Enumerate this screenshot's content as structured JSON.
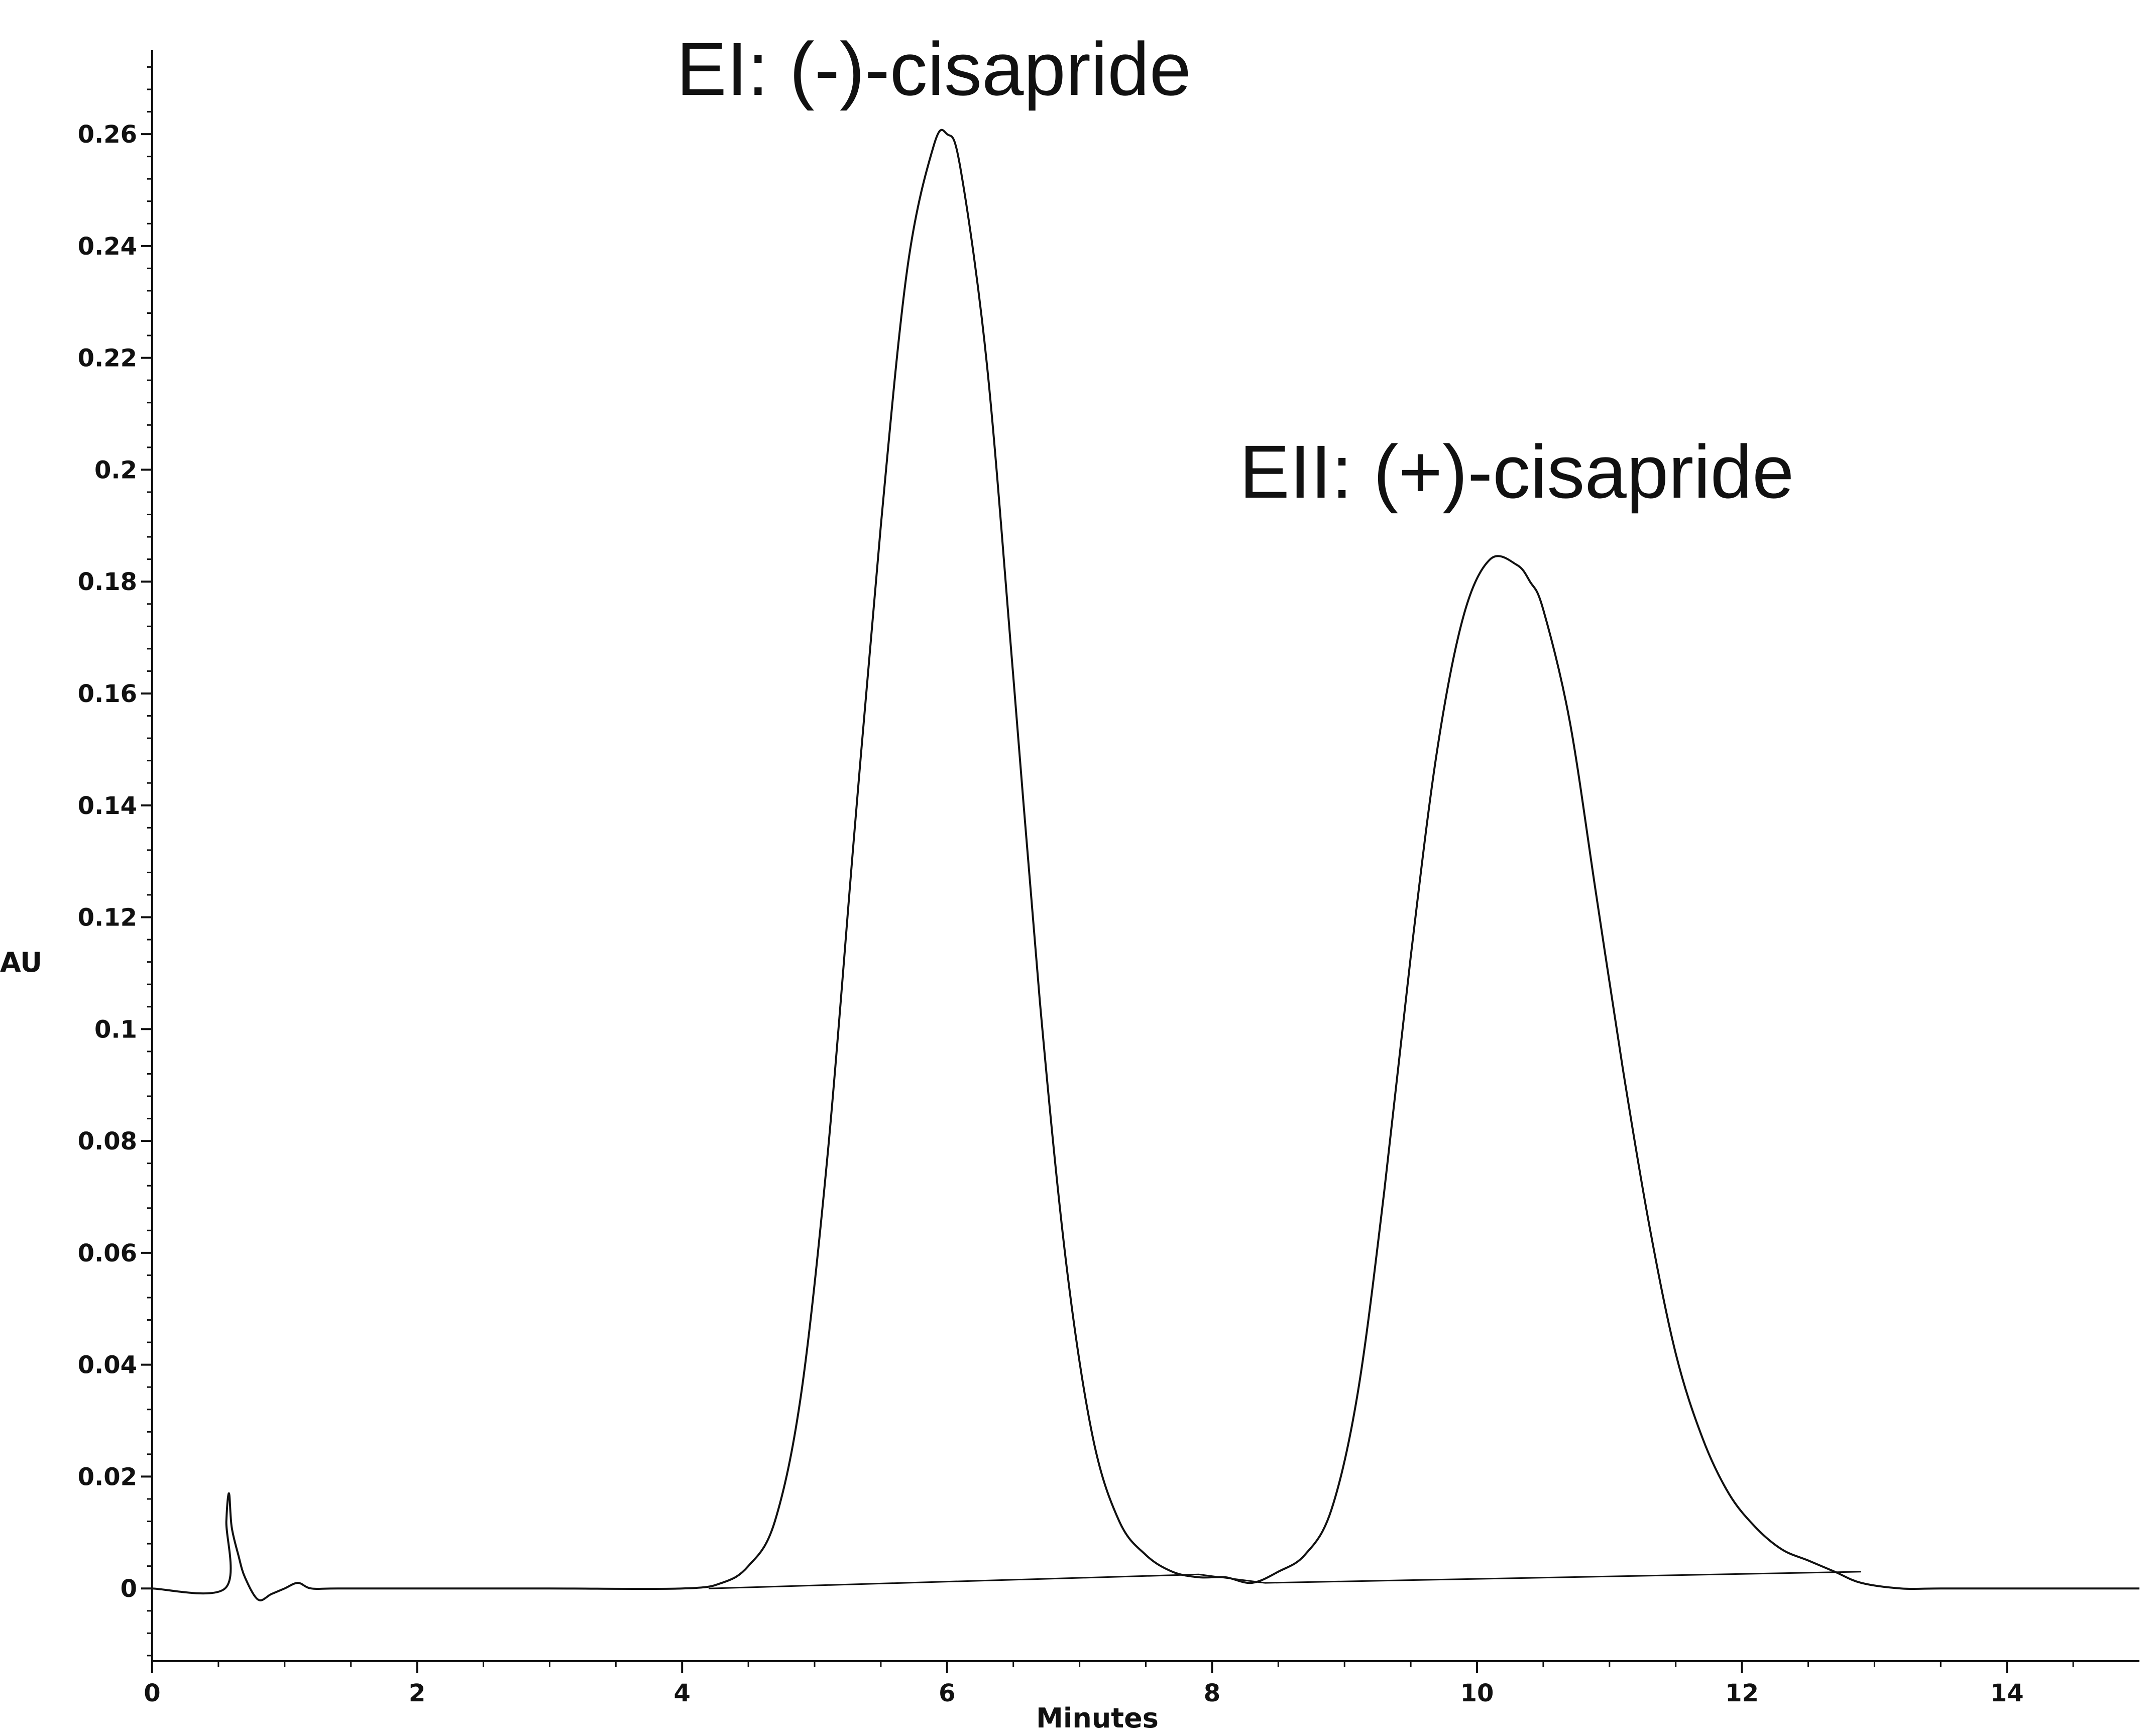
{
  "chart_data": {
    "type": "line",
    "title": "",
    "xlabel": "Minutes",
    "ylabel": "AU",
    "xlim": [
      0,
      15
    ],
    "ylim": [
      -0.013,
      0.275
    ],
    "x_ticks": [
      0,
      2,
      4,
      6,
      8,
      10,
      12,
      14
    ],
    "x_tick_labels": [
      "0",
      "2",
      "4",
      "6",
      "8",
      "10",
      "12",
      "14"
    ],
    "y_ticks": [
      0,
      0.02,
      0.04,
      0.06,
      0.08,
      0.1,
      0.12,
      0.14,
      0.16,
      0.18,
      0.2,
      0.22,
      0.24,
      0.26
    ],
    "y_tick_labels": [
      "0",
      "0.02",
      "0.04",
      "0.06",
      "0.08",
      "0.1",
      "0.12",
      "0.14",
      "0.16",
      "0.18",
      "0.2",
      "0.22",
      "0.24",
      "0.26"
    ],
    "grid": false,
    "line_color": "#111111",
    "series": [
      {
        "x": [
          0.0,
          0.55,
          0.56,
          0.58,
          0.6,
          0.65,
          0.7,
          0.8,
          0.9,
          1.0,
          1.1,
          1.2,
          1.4,
          2.0,
          3.0,
          4.0,
          4.3,
          4.5,
          4.7,
          4.9,
          5.1,
          5.3,
          5.5,
          5.7,
          5.9,
          6.0,
          6.1,
          6.3,
          6.5,
          6.7,
          6.9,
          7.1,
          7.3,
          7.5,
          7.7,
          7.9,
          8.1,
          8.3,
          8.5,
          8.7,
          8.9,
          9.1,
          9.3,
          9.5,
          9.7,
          9.9,
          10.1,
          10.3,
          10.4,
          10.5,
          10.7,
          10.9,
          11.1,
          11.3,
          11.5,
          11.7,
          11.9,
          12.1,
          12.3,
          12.5,
          12.7,
          12.9,
          13.2,
          13.5,
          14.0,
          15.0
        ],
        "y": [
          0.0,
          0.0,
          0.012,
          0.017,
          0.011,
          0.006,
          0.002,
          -0.002,
          -0.001,
          0.0,
          0.001,
          0.0,
          0.0,
          0.0,
          0.0,
          0.0,
          0.001,
          0.004,
          0.012,
          0.035,
          0.078,
          0.135,
          0.19,
          0.236,
          0.258,
          0.26,
          0.254,
          0.219,
          0.163,
          0.105,
          0.058,
          0.027,
          0.012,
          0.006,
          0.003,
          0.002,
          0.002,
          0.001,
          0.003,
          0.006,
          0.014,
          0.035,
          0.071,
          0.113,
          0.15,
          0.174,
          0.184,
          0.183,
          0.18,
          0.175,
          0.155,
          0.124,
          0.093,
          0.065,
          0.042,
          0.027,
          0.017,
          0.011,
          0.007,
          0.005,
          0.003,
          0.001,
          0.0,
          0.0,
          0.0,
          0.0
        ]
      }
    ],
    "baselines": [
      {
        "x": [
          4.2,
          7.9
        ],
        "y": [
          0.0,
          0.0025
        ]
      },
      {
        "x": [
          7.9,
          8.4
        ],
        "y": [
          0.0025,
          0.001
        ]
      },
      {
        "x": [
          8.4,
          12.9
        ],
        "y": [
          0.001,
          0.003
        ]
      }
    ],
    "annotations": [
      {
        "text": "EI: (-)-cisapride",
        "x": 5.9,
        "y": 0.267
      },
      {
        "text": "EII: (+)-cisapride",
        "x": 10.3,
        "y": 0.195
      }
    ]
  }
}
